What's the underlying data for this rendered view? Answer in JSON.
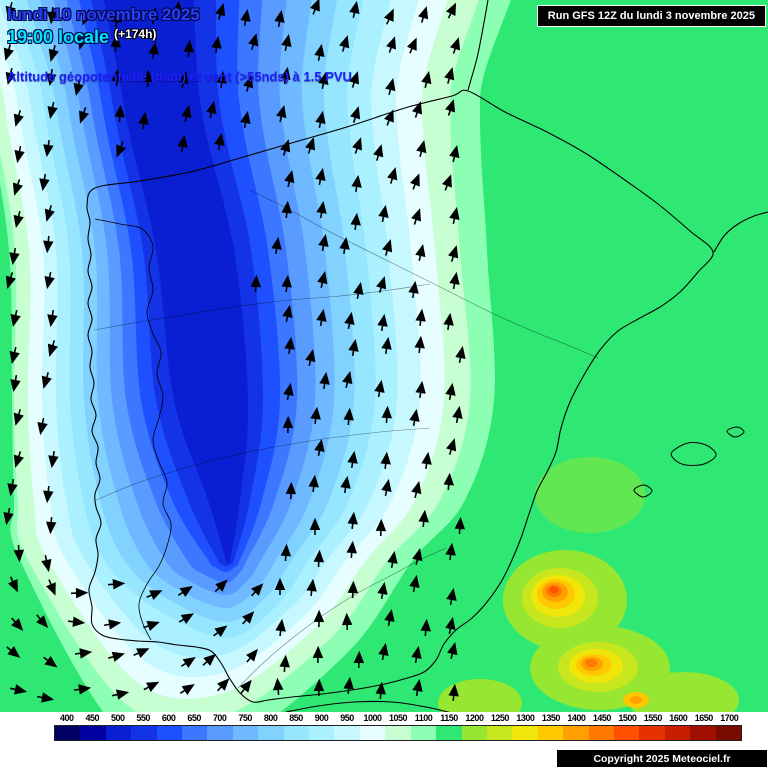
{
  "header": {
    "date": "lundi 10 novembre 2025",
    "time": "19:00 locale",
    "offset": "(+174h)",
    "subtitle": "Altitude géopotentielle (dam) et vent (>55nds) à 1.5 PVU",
    "run": "Run GFS 12Z du lundi 3 novembre 2025"
  },
  "footer": {
    "copyright": "Copyright 2025 Meteociel.fr"
  },
  "legend": {
    "values": [
      400,
      450,
      500,
      550,
      600,
      650,
      700,
      750,
      800,
      850,
      900,
      950,
      1000,
      1050,
      1100,
      1150,
      1200,
      1250,
      1300,
      1350,
      1400,
      1450,
      1500,
      1550,
      1600,
      1650,
      1700
    ],
    "colors": [
      "#000064",
      "#0000a0",
      "#0a1ed2",
      "#1432e6",
      "#1e50ff",
      "#3c78ff",
      "#5a9bff",
      "#6eb9ff",
      "#82d2ff",
      "#96e6ff",
      "#aaf0ff",
      "#c8f8ff",
      "#e6feff",
      "#c8ffd2",
      "#8cffb4",
      "#2ee873",
      "#96e632",
      "#c8e61e",
      "#f0e60a",
      "#ffc800",
      "#ffa000",
      "#ff7800",
      "#ff5000",
      "#e63200",
      "#c81e00",
      "#a00f00",
      "#780a00"
    ]
  },
  "map": {
    "background_value": 1150
  },
  "icons": {
    "wind_arrow": "▲"
  },
  "ui_colors": {
    "date_text": "#2b3cff",
    "time_text": "#00e4ff",
    "offset_text": "#ffffff",
    "subtitle_text": "#2020ff",
    "run_box_bg": "#000000",
    "run_box_text": "#ffffff",
    "copyright_bg": "#000000",
    "copyright_text": "#ffffff"
  }
}
